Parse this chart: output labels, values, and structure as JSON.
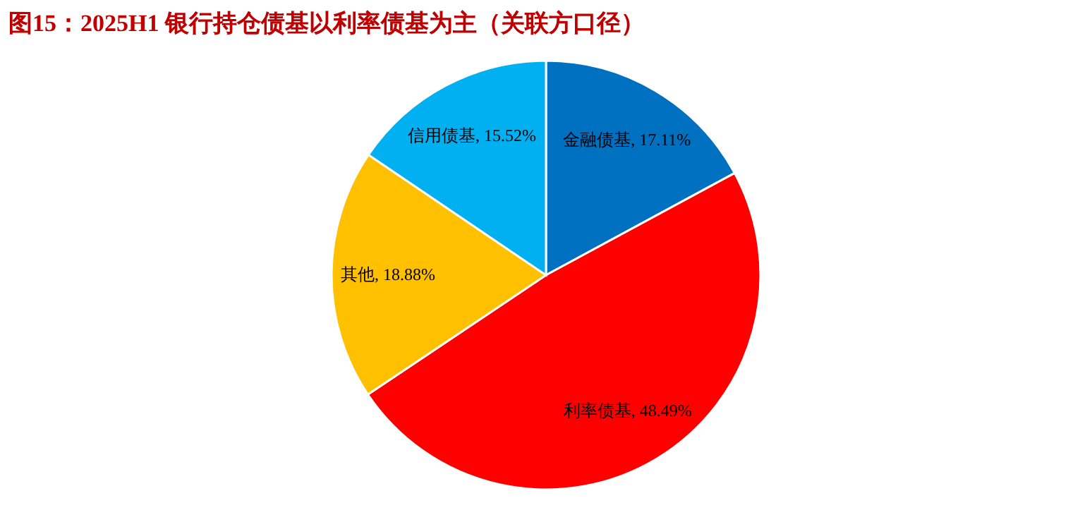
{
  "chart_data": {
    "type": "pie",
    "title": "图15：2025H1 银行持仓债基以利率债基为主（关联方口径）",
    "categories": [
      "金融债基",
      "利率债基",
      "其他",
      "信用债基"
    ],
    "values": [
      17.11,
      48.49,
      18.88,
      15.52
    ],
    "colors": [
      "#0070c0",
      "#ff0000",
      "#ffc000",
      "#00b0f0"
    ],
    "value_labels": [
      "17.11%",
      "48.49%",
      "18.88%",
      "15.52%"
    ]
  }
}
